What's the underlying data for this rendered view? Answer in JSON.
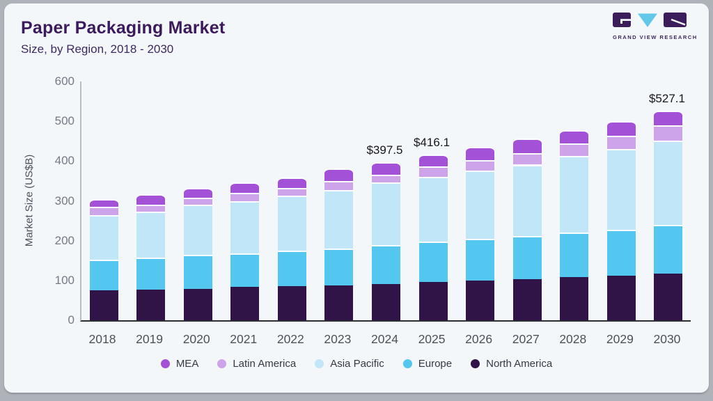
{
  "header": {
    "title": "Paper Packaging Market",
    "subtitle": "Size, by Region, 2018 - 2030"
  },
  "logo": {
    "text": "GRAND VIEW RESEARCH",
    "block_color": "#3b1d5c",
    "triangle_color": "#62c8ea"
  },
  "chart_data": {
    "type": "bar",
    "stacked": true,
    "title": "Paper Packaging Market Size, by Region, 2018 - 2030",
    "ylabel": "Market Size (US$B)",
    "ylim": [
      0,
      600
    ],
    "yticks": [
      0,
      100,
      200,
      300,
      400,
      500,
      600
    ],
    "grid": false,
    "legend_position": "bottom",
    "categories": [
      "2018",
      "2019",
      "2020",
      "2021",
      "2022",
      "2023",
      "2024",
      "2025",
      "2026",
      "2027",
      "2028",
      "2029",
      "2030"
    ],
    "series": [
      {
        "name": "North America",
        "color": "#311447",
        "values": [
          76,
          77,
          79,
          84,
          86,
          88,
          91,
          96,
          99,
          103,
          108,
          112,
          117
        ]
      },
      {
        "name": "Europe",
        "color": "#53c7f0",
        "values": [
          77,
          81,
          85,
          84,
          89,
          93,
          98,
          101,
          105,
          108,
          112,
          116,
          122
        ]
      },
      {
        "name": "Asia Pacific",
        "color": "#c0e6f8",
        "values": [
          111,
          115,
          126,
          131,
          138,
          146,
          157,
          164,
          172,
          180,
          193,
          202,
          213
        ]
      },
      {
        "name": "Latin America",
        "color": "#cda3e9",
        "values": [
          21,
          18,
          18,
          22,
          19,
          23,
          20,
          26,
          27,
          29,
          31,
          33,
          38
        ]
      },
      {
        "name": "MEA",
        "color": "#a351d6",
        "values": [
          19,
          26,
          24,
          25,
          26,
          31,
          31.5,
          29.1,
          32,
          37,
          34,
          37,
          37.1
        ]
      }
    ],
    "legend_order": [
      "MEA",
      "Latin America",
      "Asia Pacific",
      "Europe",
      "North America"
    ],
    "annotations": [
      {
        "category": "2024",
        "text": "$397.5"
      },
      {
        "category": "2025",
        "text": "$416.1"
      },
      {
        "category": "2030",
        "text": "$527.1"
      }
    ]
  }
}
